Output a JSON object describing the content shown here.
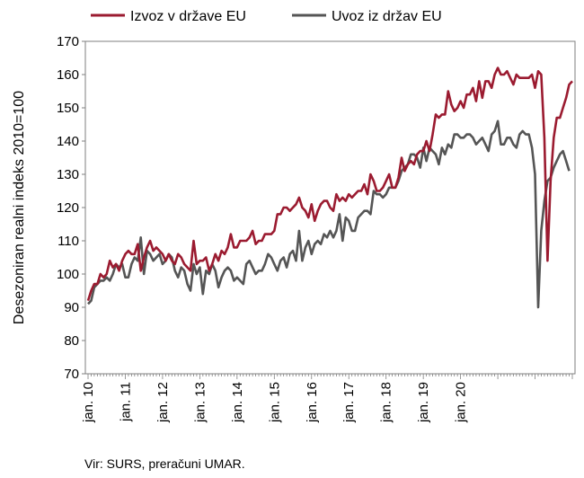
{
  "chart_data": {
    "type": "line",
    "title": "",
    "ylabel": "Desezoniran realni indeks 2010=100",
    "xlabel": "",
    "ylim": [
      70,
      170
    ],
    "y_ticks": [
      70,
      80,
      90,
      100,
      110,
      120,
      130,
      140,
      150,
      160,
      170
    ],
    "x_tick_labels": [
      "jan. 10",
      "jan. 11",
      "jan. 12",
      "jan. 13",
      "jan. 14",
      "jan. 15",
      "jan. 16",
      "jan. 17",
      "jan. 18",
      "jan. 19",
      "jan. 20"
    ],
    "x_start": "jan. 10",
    "frequency": "monthly",
    "grid": false,
    "legend_position": "top",
    "source_note": "Vir: SURS, preračuni UMAR.",
    "series": [
      {
        "name": "Izvoz v države EU",
        "color": "#9b1b30",
        "values": [
          92,
          95,
          97,
          97,
          100,
          99,
          100,
          104,
          102,
          103,
          101,
          104,
          106,
          107,
          106,
          106,
          109,
          101,
          105,
          108,
          110,
          107,
          108,
          107,
          106,
          104,
          106,
          104,
          103,
          106,
          105,
          103,
          102,
          101,
          110,
          103,
          104,
          104,
          105,
          101,
          103,
          106,
          104,
          107,
          106,
          108,
          112,
          108,
          108,
          110,
          110,
          110,
          111,
          113,
          109,
          110,
          110,
          112,
          112,
          112,
          113,
          118,
          118,
          120,
          120,
          119,
          120,
          121,
          123,
          120,
          119,
          117,
          121,
          116,
          119,
          121,
          122,
          122,
          120,
          119,
          124,
          122,
          123,
          122,
          124,
          123,
          124,
          125,
          125,
          127,
          124,
          130,
          128,
          125,
          125,
          126,
          128,
          130,
          126,
          126,
          129,
          135,
          131,
          133,
          134,
          133,
          136,
          137,
          137,
          140,
          137,
          142,
          148,
          147,
          148,
          148,
          155,
          151,
          149,
          150,
          152,
          150,
          154,
          154,
          156,
          152,
          158,
          153,
          158,
          158,
          156,
          160,
          162,
          160,
          160,
          161,
          159,
          157,
          160,
          159,
          159,
          159,
          159,
          160,
          156,
          161,
          160,
          141,
          104,
          128,
          141,
          147,
          147,
          150,
          153,
          157,
          158
        ]
      },
      {
        "name": "Uvoz iz držav EU",
        "color": "#555555",
        "values": [
          91,
          92,
          96,
          97,
          98,
          98,
          99,
          98,
          100,
          103,
          102,
          103,
          99,
          99,
          103,
          105,
          104,
          111,
          100,
          107,
          106,
          104,
          105,
          106,
          103,
          104,
          106,
          105,
          101,
          99,
          102,
          101,
          97,
          95,
          103,
          100,
          102,
          94,
          101,
          100,
          103,
          101,
          96,
          99,
          101,
          102,
          101,
          98,
          99,
          98,
          97,
          103,
          104,
          102,
          100,
          101,
          101,
          103,
          106,
          105,
          103,
          101,
          104,
          105,
          102,
          106,
          107,
          104,
          113,
          104,
          108,
          110,
          106,
          109,
          110,
          109,
          112,
          111,
          113,
          111,
          113,
          118,
          110,
          117,
          116,
          113,
          113,
          117,
          118,
          119,
          119,
          118,
          125,
          124,
          124,
          123,
          124,
          126,
          126,
          126,
          128,
          131,
          132,
          133,
          136,
          136,
          135,
          132,
          138,
          134,
          138,
          137,
          136,
          133,
          138,
          136,
          139,
          138,
          142,
          142,
          141,
          141,
          142,
          142,
          141,
          139,
          140,
          141,
          139,
          137,
          142,
          143,
          146,
          139,
          139,
          141,
          141,
          139,
          138,
          142,
          143,
          142,
          142,
          138,
          130,
          90,
          113,
          122,
          128,
          129,
          132,
          134,
          136,
          137,
          134,
          131
        ]
      }
    ]
  }
}
